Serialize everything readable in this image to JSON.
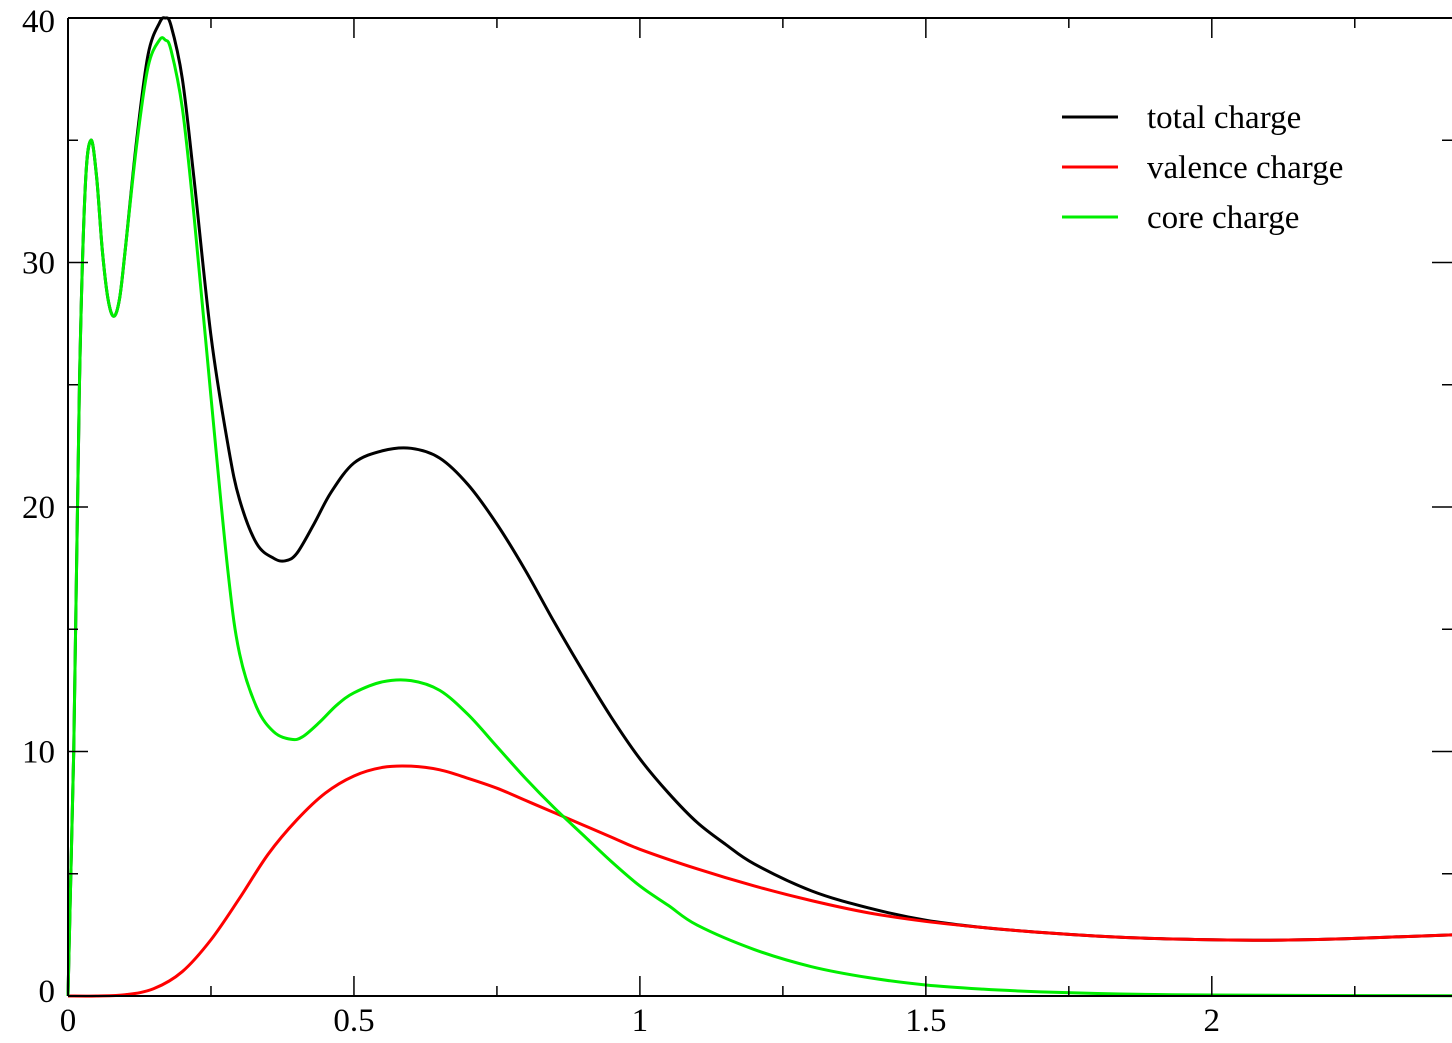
{
  "chart_data": {
    "type": "line",
    "title": "",
    "xlabel": "",
    "ylabel": "",
    "xlim": [
      0,
      2.42
    ],
    "ylim": [
      0,
      40
    ],
    "x_ticks": [
      0,
      0.5,
      1,
      1.5,
      2
    ],
    "x_tick_labels": [
      "0",
      "0.5",
      "1",
      "1.5",
      "2"
    ],
    "x_minor_ticks": [
      0.25,
      0.75,
      1.25,
      1.75,
      2.25
    ],
    "y_ticks": [
      0,
      10,
      20,
      30,
      40
    ],
    "y_tick_labels": [
      "0",
      "10",
      "20",
      "30",
      "40"
    ],
    "y_minor_ticks": [
      5,
      15,
      25,
      35
    ],
    "grid": false,
    "legend_position": "top-right",
    "series": [
      {
        "name": "total charge",
        "color": "#000000",
        "points": [
          [
            0,
            0
          ],
          [
            0.01,
            10
          ],
          [
            0.02,
            25
          ],
          [
            0.03,
            33
          ],
          [
            0.04,
            35
          ],
          [
            0.05,
            33.5
          ],
          [
            0.06,
            30.5
          ],
          [
            0.07,
            28.5
          ],
          [
            0.08,
            27.8
          ],
          [
            0.09,
            28.5
          ],
          [
            0.1,
            30.5
          ],
          [
            0.12,
            35
          ],
          [
            0.14,
            38.5
          ],
          [
            0.16,
            39.8
          ],
          [
            0.17,
            40
          ],
          [
            0.18,
            39.7
          ],
          [
            0.2,
            37.5
          ],
          [
            0.22,
            33.5
          ],
          [
            0.25,
            27
          ],
          [
            0.28,
            22.5
          ],
          [
            0.3,
            20.3
          ],
          [
            0.33,
            18.5
          ],
          [
            0.36,
            17.9
          ],
          [
            0.38,
            17.8
          ],
          [
            0.4,
            18.1
          ],
          [
            0.43,
            19.3
          ],
          [
            0.46,
            20.6
          ],
          [
            0.5,
            21.8
          ],
          [
            0.55,
            22.3
          ],
          [
            0.6,
            22.4
          ],
          [
            0.65,
            22
          ],
          [
            0.7,
            20.9
          ],
          [
            0.75,
            19.3
          ],
          [
            0.8,
            17.4
          ],
          [
            0.85,
            15.3
          ],
          [
            0.9,
            13.3
          ],
          [
            0.95,
            11.4
          ],
          [
            1,
            9.7
          ],
          [
            1.05,
            8.3
          ],
          [
            1.1,
            7.1
          ],
          [
            1.15,
            6.2
          ],
          [
            1.2,
            5.4
          ],
          [
            1.3,
            4.3
          ],
          [
            1.4,
            3.6
          ],
          [
            1.5,
            3.1
          ],
          [
            1.6,
            2.8
          ],
          [
            1.7,
            2.6
          ],
          [
            1.8,
            2.45
          ],
          [
            1.9,
            2.35
          ],
          [
            2,
            2.3
          ],
          [
            2.1,
            2.28
          ],
          [
            2.2,
            2.32
          ],
          [
            2.3,
            2.4
          ],
          [
            2.42,
            2.5
          ]
        ]
      },
      {
        "name": "valence charge",
        "color": "#ff0000",
        "points": [
          [
            0,
            0
          ],
          [
            0.05,
            0
          ],
          [
            0.1,
            0.05
          ],
          [
            0.15,
            0.3
          ],
          [
            0.2,
            1
          ],
          [
            0.25,
            2.3
          ],
          [
            0.3,
            4
          ],
          [
            0.35,
            5.8
          ],
          [
            0.4,
            7.2
          ],
          [
            0.45,
            8.3
          ],
          [
            0.5,
            9
          ],
          [
            0.55,
            9.35
          ],
          [
            0.6,
            9.4
          ],
          [
            0.65,
            9.25
          ],
          [
            0.7,
            8.9
          ],
          [
            0.75,
            8.5
          ],
          [
            0.8,
            8
          ],
          [
            0.85,
            7.5
          ],
          [
            0.9,
            7
          ],
          [
            0.95,
            6.5
          ],
          [
            1,
            6
          ],
          [
            1.1,
            5.2
          ],
          [
            1.2,
            4.5
          ],
          [
            1.3,
            3.9
          ],
          [
            1.4,
            3.4
          ],
          [
            1.5,
            3.05
          ],
          [
            1.6,
            2.8
          ],
          [
            1.7,
            2.6
          ],
          [
            1.8,
            2.45
          ],
          [
            1.9,
            2.35
          ],
          [
            2,
            2.3
          ],
          [
            2.1,
            2.28
          ],
          [
            2.2,
            2.32
          ],
          [
            2.3,
            2.4
          ],
          [
            2.42,
            2.5
          ]
        ]
      },
      {
        "name": "core charge",
        "color": "#00ee00",
        "points": [
          [
            0,
            0
          ],
          [
            0.01,
            10
          ],
          [
            0.02,
            25
          ],
          [
            0.03,
            33
          ],
          [
            0.04,
            35
          ],
          [
            0.05,
            33.5
          ],
          [
            0.06,
            30.5
          ],
          [
            0.07,
            28.5
          ],
          [
            0.08,
            27.8
          ],
          [
            0.09,
            28.5
          ],
          [
            0.1,
            30.5
          ],
          [
            0.12,
            34.8
          ],
          [
            0.14,
            38
          ],
          [
            0.16,
            39.1
          ],
          [
            0.17,
            39.1
          ],
          [
            0.18,
            38.7
          ],
          [
            0.2,
            36.3
          ],
          [
            0.22,
            32
          ],
          [
            0.25,
            24.5
          ],
          [
            0.28,
            17.3
          ],
          [
            0.3,
            14
          ],
          [
            0.33,
            11.8
          ],
          [
            0.36,
            10.8
          ],
          [
            0.39,
            10.5
          ],
          [
            0.41,
            10.6
          ],
          [
            0.44,
            11.2
          ],
          [
            0.47,
            11.9
          ],
          [
            0.5,
            12.4
          ],
          [
            0.55,
            12.85
          ],
          [
            0.6,
            12.9
          ],
          [
            0.65,
            12.5
          ],
          [
            0.7,
            11.5
          ],
          [
            0.75,
            10.2
          ],
          [
            0.8,
            8.9
          ],
          [
            0.85,
            7.7
          ],
          [
            0.9,
            6.6
          ],
          [
            0.95,
            5.5
          ],
          [
            1,
            4.5
          ],
          [
            1.05,
            3.7
          ],
          [
            1.1,
            2.9
          ],
          [
            1.2,
            1.9
          ],
          [
            1.3,
            1.2
          ],
          [
            1.4,
            0.75
          ],
          [
            1.5,
            0.45
          ],
          [
            1.6,
            0.28
          ],
          [
            1.7,
            0.17
          ],
          [
            1.8,
            0.1
          ],
          [
            1.9,
            0.06
          ],
          [
            2,
            0.04
          ],
          [
            2.2,
            0.02
          ],
          [
            2.42,
            0.01
          ]
        ]
      }
    ]
  }
}
